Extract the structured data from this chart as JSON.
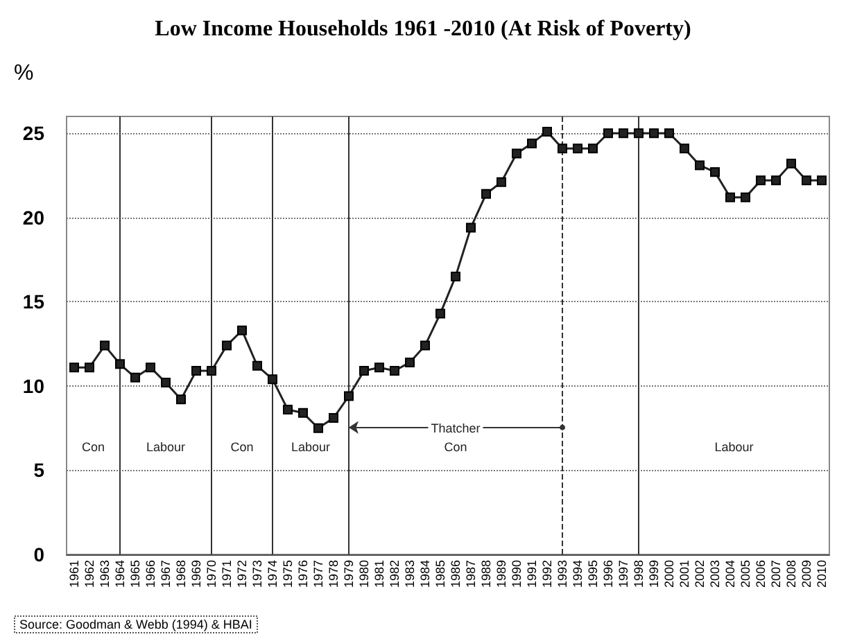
{
  "chart_data": {
    "type": "line",
    "title": "Low Income Households 1961 -2010 (At Risk of Poverty)",
    "ylabel": "%",
    "categories": [
      "1961",
      "1962",
      "1963",
      "1964",
      "1965",
      "1966",
      "1967",
      "1968",
      "1969",
      "1970",
      "1971",
      "1972",
      "1973",
      "1974",
      "1975",
      "1976",
      "1977",
      "1978",
      "1979",
      "1980",
      "1981",
      "1982",
      "1983",
      "1984",
      "1985",
      "1986",
      "1987",
      "1988",
      "1989",
      "1990",
      "1991",
      "1992",
      "1993",
      "1994",
      "1995",
      "1996",
      "1997",
      "1998",
      "1999",
      "2000",
      "2001",
      "2002",
      "2003",
      "2004",
      "2005",
      "2006",
      "2007",
      "2008",
      "2009",
      "2010"
    ],
    "series": [
      {
        "color": "#222222",
        "values": [
          11.1,
          11.1,
          12.4,
          11.3,
          10.5,
          11.1,
          10.2,
          9.2,
          10.9,
          10.9,
          12.4,
          13.3,
          11.2,
          10.4,
          8.6,
          8.4,
          7.5,
          8.1,
          9.4,
          10.9,
          11.1,
          10.9,
          11.4,
          12.4,
          14.3,
          16.5,
          19.4,
          21.4,
          22.1,
          23.8,
          24.4,
          25.1,
          24.1,
          24.1,
          24.1,
          25.0,
          25.0,
          25.0,
          25.0,
          25.0,
          24.1,
          23.1,
          22.7,
          21.2,
          21.2,
          22.2,
          22.2,
          23.2,
          22.2,
          22.2
        ]
      }
    ],
    "ylim": [
      0,
      26
    ],
    "yticks": [
      0,
      5,
      10,
      15,
      20,
      25
    ],
    "grid": "y",
    "marker": "square",
    "line_style": "solid",
    "ref_lines": [
      {
        "axis": "x",
        "value": "1964",
        "color": "#333333",
        "line_style": "solid"
      },
      {
        "axis": "x",
        "value": "1970",
        "color": "#333333",
        "line_style": "solid"
      },
      {
        "axis": "x",
        "value": "1974",
        "color": "#333333",
        "line_style": "solid"
      },
      {
        "axis": "x",
        "value": "1979",
        "color": "#333333",
        "line_style": "solid"
      },
      {
        "axis": "x",
        "value": "1993",
        "color": "#333333",
        "line_style": "dashed"
      },
      {
        "axis": "x",
        "value": "1998",
        "color": "#333333",
        "line_style": "solid"
      }
    ],
    "annotations": [
      "Con",
      "Labour",
      "Con",
      "Labour",
      "Con",
      "Labour",
      "Thatcher",
      "Source: Goodman & Webb (1994) & HBAI"
    ]
  }
}
